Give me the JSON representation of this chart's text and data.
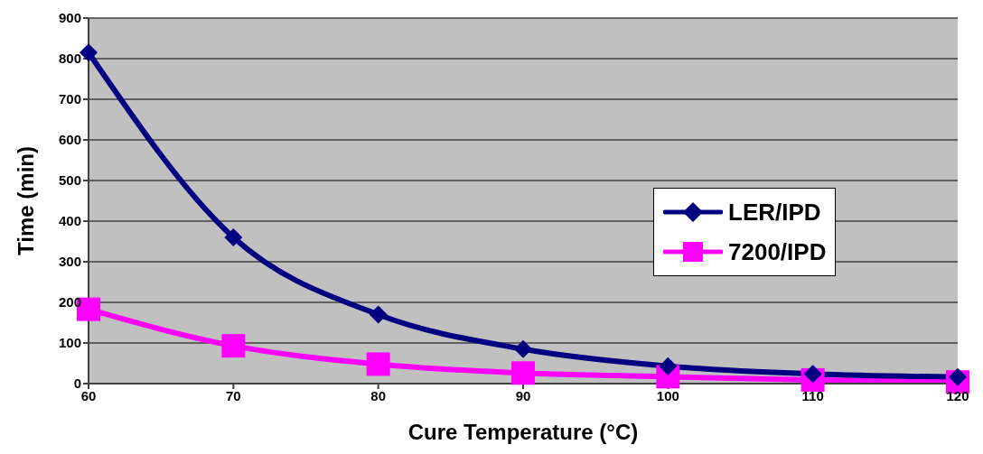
{
  "chart_data": {
    "type": "line",
    "xlabel": "Cure Temperature (°C)",
    "ylabel": "Time (min)",
    "x": [
      60,
      70,
      80,
      90,
      100,
      110,
      120
    ],
    "series": [
      {
        "name": "LER/IPD",
        "color": "#000080",
        "marker": "diamond",
        "values": [
          815,
          360,
          170,
          85,
          43,
          24,
          16
        ]
      },
      {
        "name": "7200/IPD",
        "color": "#ff00ff",
        "marker": "square",
        "values": [
          183,
          93,
          48,
          26,
          17,
          9,
          4
        ]
      }
    ],
    "xlim": [
      60,
      120
    ],
    "xticks": [
      60,
      70,
      80,
      90,
      100,
      110,
      120
    ],
    "ylim": [
      0,
      900
    ],
    "yticks": [
      0,
      100,
      200,
      300,
      400,
      500,
      600,
      700,
      800,
      900
    ],
    "grid": "y",
    "legend": "right",
    "line_style": "solid"
  }
}
